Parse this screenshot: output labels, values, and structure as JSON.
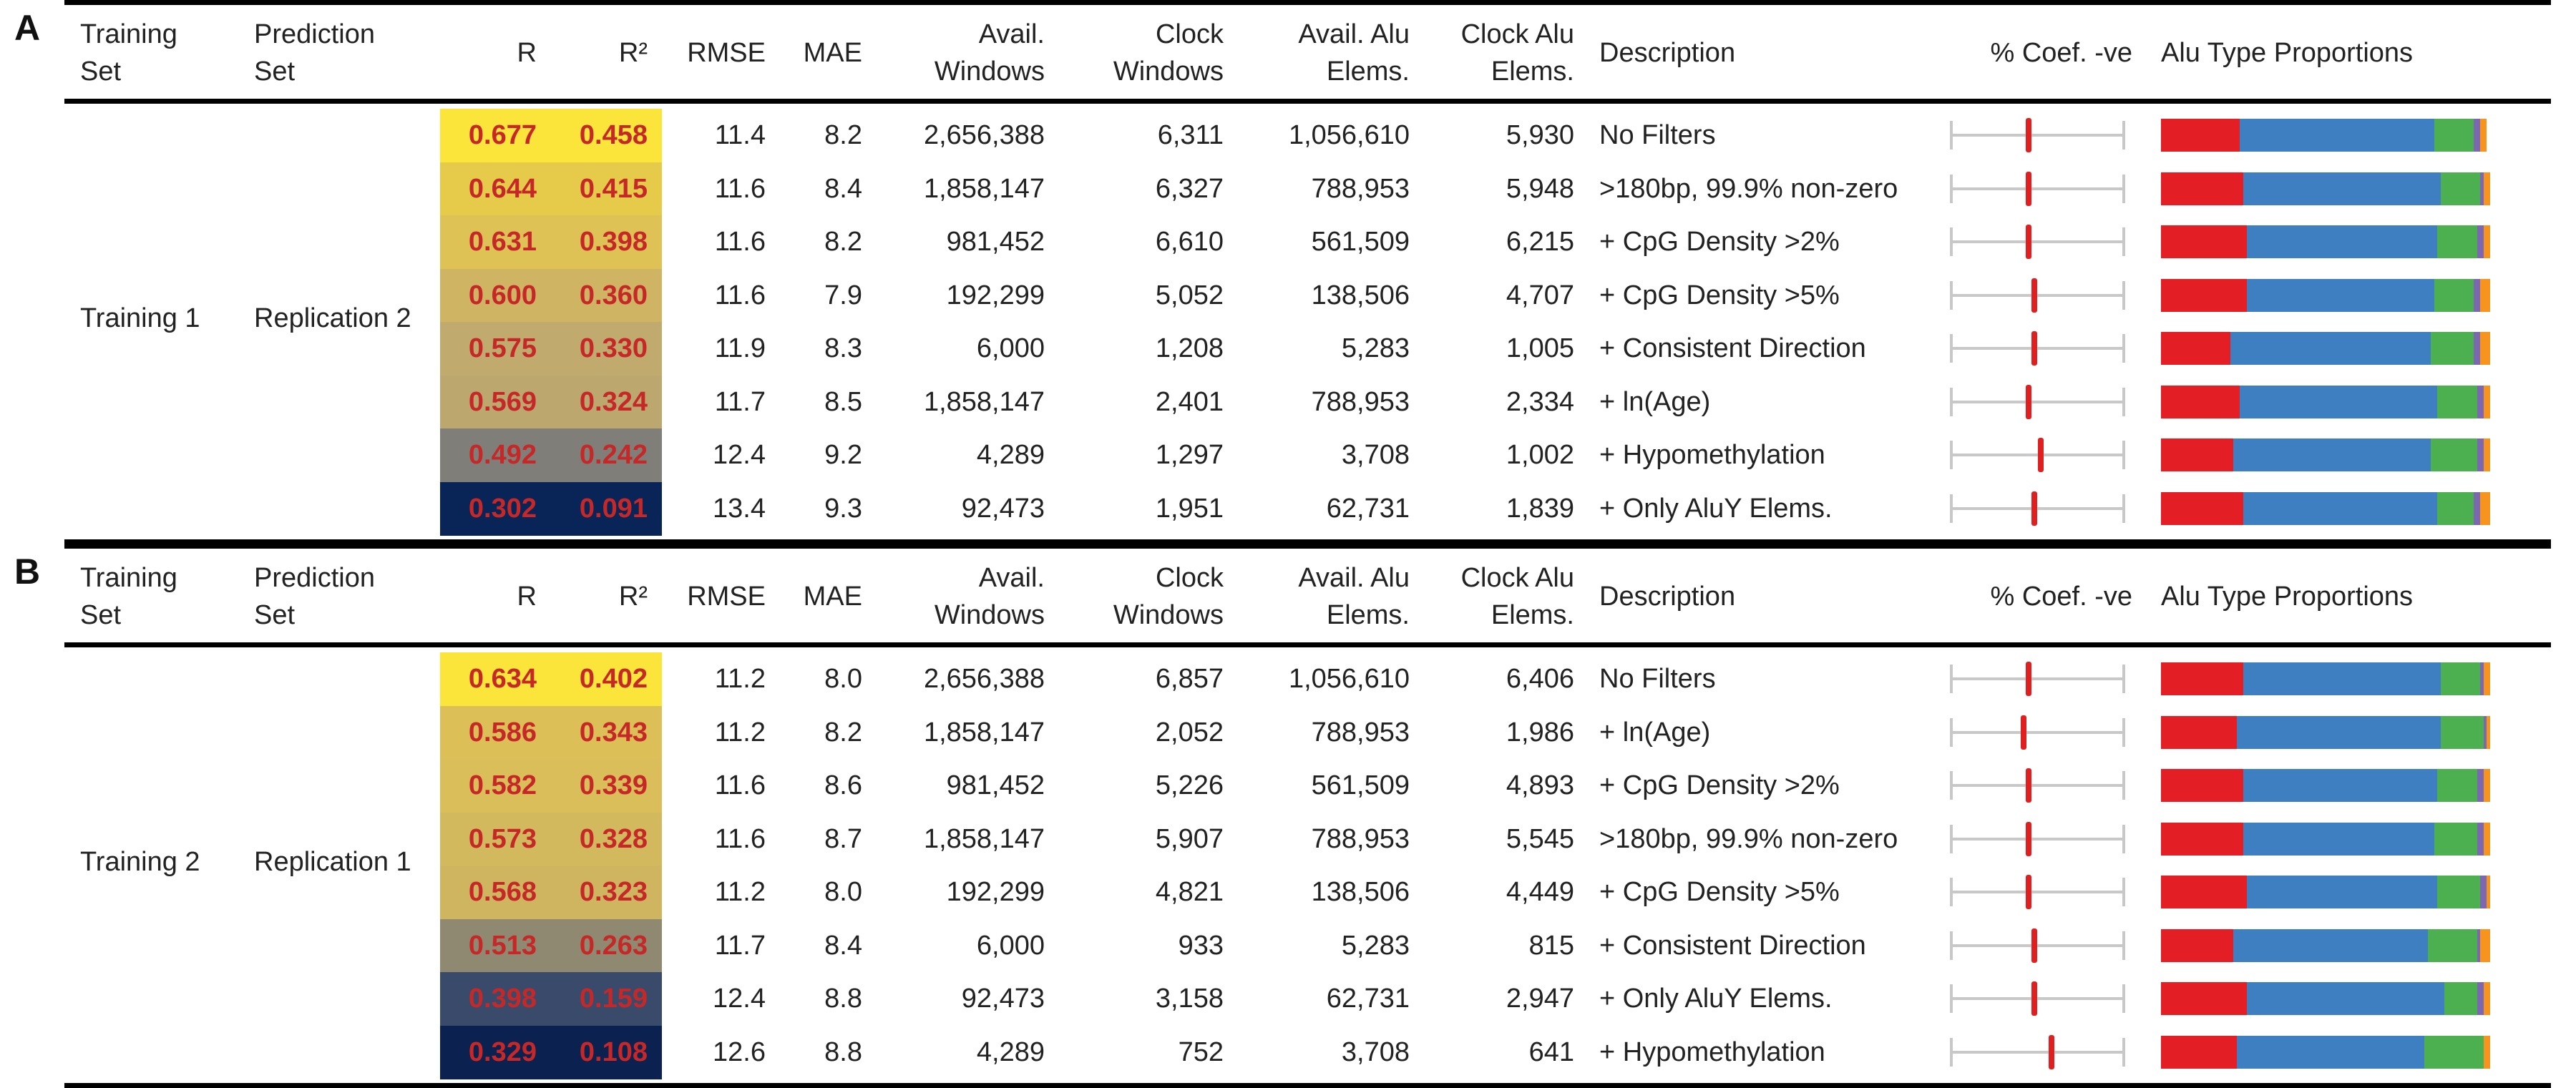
{
  "headers": {
    "training_set": [
      "Training",
      "Set"
    ],
    "prediction_set": [
      "Prediction",
      "Set"
    ],
    "r": "R",
    "r2": "R²",
    "rmse": "RMSE",
    "mae": "MAE",
    "avail_windows": [
      "Avail.",
      "Windows"
    ],
    "clock_windows": [
      "Clock",
      "Windows"
    ],
    "avail_alu": [
      "Avail. Alu",
      "Elems."
    ],
    "clock_alu": [
      "Clock Alu",
      "Elems."
    ],
    "description": "Description",
    "coef_neg": "% Coef. -ve",
    "alu_props": "Alu Type Proportions"
  },
  "alu_colors": [
    "#e31e24",
    "#3d7fc1",
    "#4caf50",
    "#7b68b0",
    "#f7941d"
  ],
  "panels": [
    {
      "letter": "A",
      "training": "Training 1",
      "prediction": "Replication 2",
      "rows": [
        {
          "r": "0.677",
          "r2": "0.458",
          "rmse": "11.4",
          "mae": "8.2",
          "aw": "2,656,388",
          "cw": "6,311",
          "aa": "1,056,610",
          "ca": "5,930",
          "desc": "No Filters",
          "heat": "#fbe53a",
          "coef": 0.45,
          "alu": [
            0.24,
            0.59,
            0.12,
            0.02,
            0.02
          ]
        },
        {
          "r": "0.644",
          "r2": "0.415",
          "rmse": "11.6",
          "mae": "8.4",
          "aw": "1,858,147",
          "cw": "6,327",
          "aa": "788,953",
          "ca": "5,948",
          "desc": ">180bp, 99.9% non-zero",
          "heat": "#e6cb4b",
          "coef": 0.45,
          "alu": [
            0.25,
            0.6,
            0.12,
            0.01,
            0.02
          ]
        },
        {
          "r": "0.631",
          "r2": "0.398",
          "rmse": "11.6",
          "mae": "8.2",
          "aw": "981,452",
          "cw": "6,610",
          "aa": "561,509",
          "ca": "6,215",
          "desc": "+ CpG Density >2%",
          "heat": "#dfc255",
          "coef": 0.45,
          "alu": [
            0.26,
            0.58,
            0.12,
            0.02,
            0.02
          ]
        },
        {
          "r": "0.600",
          "r2": "0.360",
          "rmse": "11.6",
          "mae": "7.9",
          "aw": "192,299",
          "cw": "5,052",
          "aa": "138,506",
          "ca": "4,707",
          "desc": "+ CpG Density >5%",
          "heat": "#cfb563",
          "coef": 0.48,
          "alu": [
            0.26,
            0.57,
            0.12,
            0.02,
            0.03
          ]
        },
        {
          "r": "0.575",
          "r2": "0.330",
          "rmse": "11.9",
          "mae": "8.3",
          "aw": "6,000",
          "cw": "1,208",
          "aa": "5,283",
          "ca": "1,005",
          "desc": "+ Consistent Direction",
          "heat": "#c0aa6d",
          "coef": 0.48,
          "alu": [
            0.21,
            0.61,
            0.13,
            0.02,
            0.03
          ]
        },
        {
          "r": "0.569",
          "r2": "0.324",
          "rmse": "11.7",
          "mae": "8.5",
          "aw": "1,858,147",
          "cw": "2,401",
          "aa": "788,953",
          "ca": "2,334",
          "desc": "+ ln(Age)",
          "heat": "#bca76e",
          "coef": 0.45,
          "alu": [
            0.24,
            0.6,
            0.12,
            0.02,
            0.02
          ]
        },
        {
          "r": "0.492",
          "r2": "0.242",
          "rmse": "12.4",
          "mae": "9.2",
          "aw": "4,289",
          "cw": "1,297",
          "aa": "3,708",
          "ca": "1,002",
          "desc": "+ Hypomethylation",
          "heat": "#7f7e78",
          "coef": 0.52,
          "alu": [
            0.22,
            0.6,
            0.14,
            0.02,
            0.02
          ]
        },
        {
          "r": "0.302",
          "r2": "0.091",
          "rmse": "13.4",
          "mae": "9.3",
          "aw": "92,473",
          "cw": "1,951",
          "aa": "62,731",
          "ca": "1,839",
          "desc": "+ Only AluY Elems.",
          "heat": "#092457",
          "coef": 0.48,
          "alu": [
            0.25,
            0.59,
            0.11,
            0.02,
            0.03
          ]
        }
      ]
    },
    {
      "letter": "B",
      "training": "Training 2",
      "prediction": "Replication 1",
      "rows": [
        {
          "r": "0.634",
          "r2": "0.402",
          "rmse": "11.2",
          "mae": "8.0",
          "aw": "2,656,388",
          "cw": "6,857",
          "aa": "1,056,610",
          "ca": "6,406",
          "desc": "No Filters",
          "heat": "#fbe53a",
          "coef": 0.45,
          "alu": [
            0.25,
            0.6,
            0.12,
            0.01,
            0.02
          ]
        },
        {
          "r": "0.586",
          "r2": "0.343",
          "rmse": "11.2",
          "mae": "8.2",
          "aw": "1,858,147",
          "cw": "2,052",
          "aa": "788,953",
          "ca": "1,986",
          "desc": "+ ln(Age)",
          "heat": "#dcc057",
          "coef": 0.42,
          "alu": [
            0.23,
            0.62,
            0.13,
            0.01,
            0.01
          ]
        },
        {
          "r": "0.582",
          "r2": "0.339",
          "rmse": "11.6",
          "mae": "8.6",
          "aw": "981,452",
          "cw": "5,226",
          "aa": "561,509",
          "ca": "4,893",
          "desc": "+ CpG Density >2%",
          "heat": "#d9be5a",
          "coef": 0.45,
          "alu": [
            0.25,
            0.59,
            0.12,
            0.02,
            0.02
          ]
        },
        {
          "r": "0.573",
          "r2": "0.328",
          "rmse": "11.6",
          "mae": "8.7",
          "aw": "1,858,147",
          "cw": "5,907",
          "aa": "788,953",
          "ca": "5,545",
          "desc": ">180bp, 99.9% non-zero",
          "heat": "#d3b95e",
          "coef": 0.45,
          "alu": [
            0.25,
            0.58,
            0.13,
            0.02,
            0.02
          ]
        },
        {
          "r": "0.568",
          "r2": "0.323",
          "rmse": "11.2",
          "mae": "8.0",
          "aw": "192,299",
          "cw": "4,821",
          "aa": "138,506",
          "ca": "4,449",
          "desc": "+ CpG Density >5%",
          "heat": "#cfb560",
          "coef": 0.45,
          "alu": [
            0.26,
            0.58,
            0.13,
            0.02,
            0.01
          ]
        },
        {
          "r": "0.513",
          "r2": "0.263",
          "rmse": "11.7",
          "mae": "8.4",
          "aw": "6,000",
          "cw": "933",
          "aa": "5,283",
          "ca": "815",
          "desc": "+ Consistent Direction",
          "heat": "#8f8972",
          "coef": 0.48,
          "alu": [
            0.22,
            0.59,
            0.15,
            0.01,
            0.03
          ]
        },
        {
          "r": "0.398",
          "r2": "0.159",
          "rmse": "12.4",
          "mae": "8.8",
          "aw": "92,473",
          "cw": "3,158",
          "aa": "62,731",
          "ca": "2,947",
          "desc": "+ Only AluY Elems.",
          "heat": "#3a4a6b",
          "coef": 0.48,
          "alu": [
            0.26,
            0.6,
            0.1,
            0.02,
            0.02
          ]
        },
        {
          "r": "0.329",
          "r2": "0.108",
          "rmse": "12.6",
          "mae": "8.8",
          "aw": "4,289",
          "cw": "752",
          "aa": "3,708",
          "ca": "641",
          "desc": "+ Hypomethylation",
          "heat": "#0b2150",
          "coef": 0.58,
          "alu": [
            0.23,
            0.57,
            0.18,
            0.0,
            0.02
          ]
        }
      ]
    }
  ]
}
